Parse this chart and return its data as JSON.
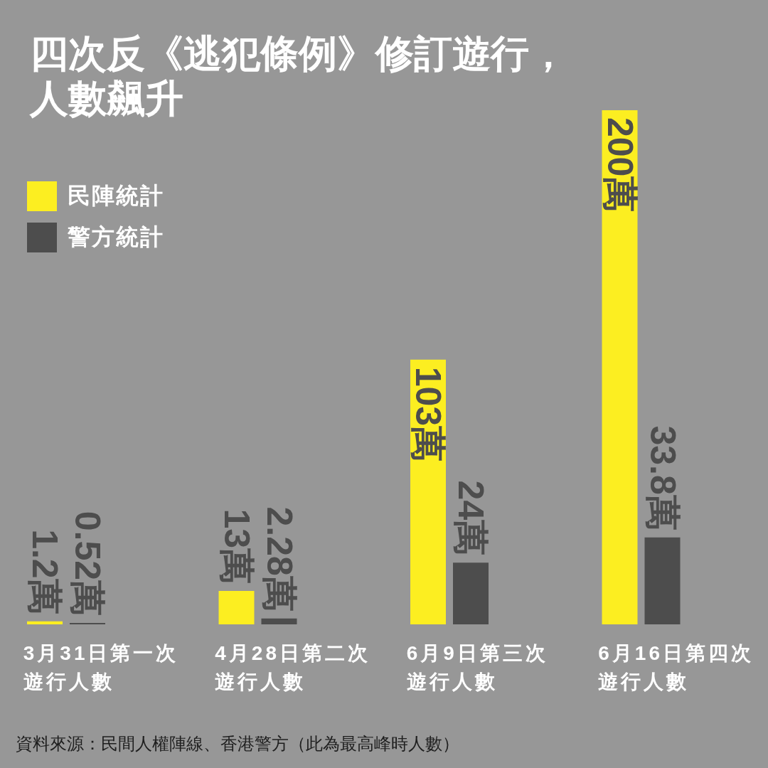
{
  "chart_data": {
    "type": "bar",
    "title": "四次反《逃犯條例》修訂遊行，人數飆升",
    "categories": [
      "3月31日第一次遊行人數",
      "4月28日第二次遊行人數",
      "6月9日第三次遊行人數",
      "6月16日第四次遊行人數"
    ],
    "series": [
      {
        "name": "民陣統計",
        "color": "#fcee21",
        "values": [
          1.2,
          13,
          103,
          200
        ],
        "value_labels": [
          "1.2萬",
          "13萬",
          "103萬",
          "200萬"
        ]
      },
      {
        "name": "警方統計",
        "color": "#4d4d4d",
        "values": [
          0.52,
          2.28,
          24,
          33.8
        ],
        "value_labels": [
          "0.52萬",
          "2.28萬",
          "24萬",
          "33.8萬"
        ]
      }
    ],
    "legend": "top left",
    "tick_labels": "x",
    "annotations": [
      "資料來源：民間人權陣線、香港警方（此為最高峰時人數）"
    ]
  }
}
